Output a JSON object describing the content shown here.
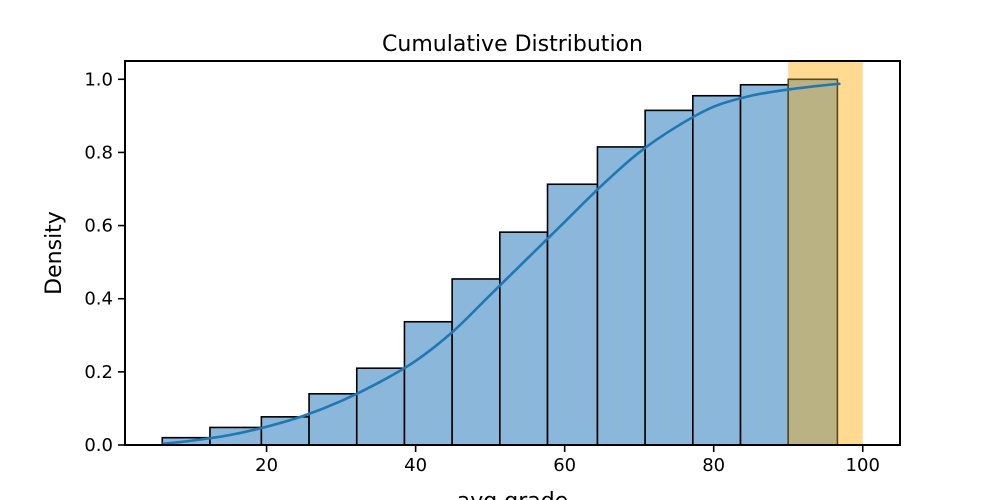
{
  "chart_data": {
    "type": "bar",
    "title": "Cumulative Distribution",
    "xlabel": "avg grade",
    "ylabel": "Density",
    "xlim": [
      1,
      105
    ],
    "ylim": [
      0,
      1.05
    ],
    "x_ticks": [
      20,
      40,
      60,
      80,
      100
    ],
    "y_ticks": [
      0.0,
      0.2,
      0.4,
      0.6,
      0.8,
      1.0
    ],
    "x_tick_labels": [
      "20",
      "40",
      "60",
      "80",
      "100"
    ],
    "y_tick_labels": [
      "0.0",
      "0.2",
      "0.4",
      "0.6",
      "0.8",
      "1.0"
    ],
    "grid": false,
    "bar_color": "#8bb8da",
    "bar_edge_color": "#000000",
    "kde_color": "#1f77b4",
    "highlight_color": "#ffd88a",
    "highlighted_bar_color": "#bab283",
    "bins": [
      {
        "x0": 6.0,
        "x1": 12.4,
        "value": 0.02
      },
      {
        "x0": 12.4,
        "x1": 19.3,
        "value": 0.048
      },
      {
        "x0": 19.3,
        "x1": 25.7,
        "value": 0.077
      },
      {
        "x0": 25.7,
        "x1": 32.1,
        "value": 0.14
      },
      {
        "x0": 32.1,
        "x1": 38.5,
        "value": 0.21
      },
      {
        "x0": 38.5,
        "x1": 44.9,
        "value": 0.337
      },
      {
        "x0": 44.9,
        "x1": 51.3,
        "value": 0.454
      },
      {
        "x0": 51.3,
        "x1": 57.7,
        "value": 0.582
      },
      {
        "x0": 57.7,
        "x1": 64.4,
        "value": 0.713
      },
      {
        "x0": 64.4,
        "x1": 70.8,
        "value": 0.815
      },
      {
        "x0": 70.8,
        "x1": 77.2,
        "value": 0.915
      },
      {
        "x0": 77.2,
        "x1": 83.6,
        "value": 0.955
      },
      {
        "x0": 83.6,
        "x1": 90.0,
        "value": 0.985
      },
      {
        "x0": 90.0,
        "x1": 96.6,
        "value": 1.0,
        "highlighted": true
      }
    ],
    "kde": {
      "x": [
        6,
        10,
        15,
        20,
        25,
        30,
        35,
        40,
        45,
        50,
        55,
        60,
        65,
        70,
        75,
        80,
        85,
        90,
        95,
        97
      ],
      "y": [
        0.003,
        0.012,
        0.027,
        0.05,
        0.08,
        0.12,
        0.17,
        0.23,
        0.31,
        0.41,
        0.51,
        0.61,
        0.71,
        0.8,
        0.87,
        0.925,
        0.955,
        0.972,
        0.984,
        0.988
      ]
    },
    "highlight_span": [
      90,
      100
    ]
  }
}
